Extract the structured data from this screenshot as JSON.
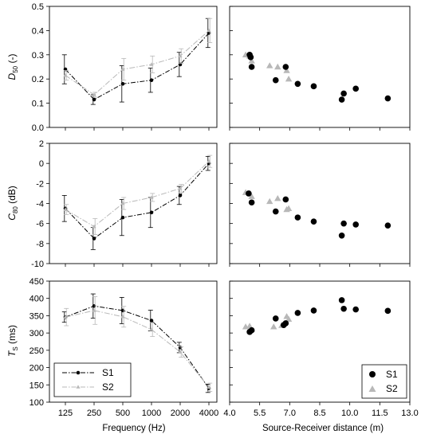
{
  "colors": {
    "S1": "#000000",
    "S2": "#b8b8b8",
    "axis": "#000000"
  },
  "chart_data": [
    {
      "type": "line",
      "panel": "D50-frequency",
      "ylabel_main": "D",
      "ylabel_sub": "50",
      "ylabel_unit": " (-)",
      "ylim": [
        0,
        0.5
      ],
      "yticks": [
        "0.0",
        "0.1",
        "0.2",
        "0.3",
        "0.4",
        "0.5"
      ],
      "categories": [
        "125",
        "250",
        "500",
        "1000",
        "2000",
        "4000"
      ],
      "series": [
        {
          "name": "S1",
          "values": [
            0.24,
            0.115,
            0.18,
            0.195,
            0.26,
            0.39
          ],
          "errors": [
            0.06,
            0.02,
            0.075,
            0.05,
            0.05,
            0.06
          ]
        },
        {
          "name": "S2",
          "values": [
            0.215,
            0.135,
            0.24,
            0.26,
            0.295,
            0.4
          ],
          "errors": [
            0.02,
            0.01,
            0.045,
            0.035,
            0.03,
            0.05
          ]
        }
      ]
    },
    {
      "type": "scatter",
      "panel": "D50-distance",
      "ylim": [
        0,
        0.5
      ],
      "xlim": [
        4.0,
        13.0
      ],
      "series": [
        {
          "name": "S1",
          "x": [
            5.0,
            5.05,
            5.1,
            6.3,
            6.8,
            7.4,
            8.2,
            9.6,
            9.7,
            10.3,
            11.9
          ],
          "y": [
            0.3,
            0.29,
            0.25,
            0.195,
            0.25,
            0.18,
            0.17,
            0.115,
            0.14,
            0.16,
            0.12
          ]
        },
        {
          "name": "S2",
          "x": [
            4.8,
            5.0,
            5.1,
            6.0,
            6.4,
            6.85,
            6.95
          ],
          "y": [
            0.3,
            0.295,
            0.275,
            0.255,
            0.25,
            0.235,
            0.2
          ]
        }
      ]
    },
    {
      "type": "line",
      "panel": "C80-frequency",
      "ylabel_main": "C",
      "ylabel_sub": "80",
      "ylabel_unit": " (dB)",
      "ylim": [
        -10,
        2
      ],
      "yticks": [
        "-10",
        "-8",
        "-6",
        "-4",
        "-2",
        "0",
        "2"
      ],
      "categories": [
        "125",
        "250",
        "500",
        "1000",
        "2000",
        "4000"
      ],
      "series": [
        {
          "name": "S1",
          "values": [
            -4.5,
            -7.5,
            -5.4,
            -4.9,
            -3.2,
            0.0
          ],
          "errors": [
            1.3,
            1.1,
            1.8,
            1.5,
            0.9,
            0.7
          ]
        },
        {
          "name": "S2",
          "values": [
            -4.6,
            -6.3,
            -4.0,
            -3.4,
            -2.5,
            0.2
          ],
          "errors": [
            0.5,
            0.8,
            0.6,
            0.4,
            0.4,
            0.6
          ]
        }
      ]
    },
    {
      "type": "scatter",
      "panel": "C80-distance",
      "ylim": [
        -10,
        2
      ],
      "xlim": [
        4.0,
        13.0
      ],
      "series": [
        {
          "name": "S1",
          "x": [
            4.95,
            5.1,
            6.3,
            6.8,
            7.4,
            8.2,
            9.6,
            9.7,
            10.3,
            11.9
          ],
          "y": [
            -3.0,
            -3.9,
            -4.8,
            -3.6,
            -5.4,
            -5.8,
            -7.2,
            -6.0,
            -6.1,
            -6.2
          ]
        },
        {
          "name": "S2",
          "x": [
            4.8,
            5.0,
            5.1,
            6.0,
            6.4,
            6.85,
            6.95
          ],
          "y": [
            -2.9,
            -3.0,
            -3.3,
            -3.8,
            -3.5,
            -4.6,
            -4.5
          ]
        }
      ]
    },
    {
      "type": "line",
      "panel": "Ts-frequency",
      "ylabel_main": "T",
      "ylabel_sub": "S",
      "ylabel_unit": " (ms)",
      "xlabel": "Frequency (Hz)",
      "ylim": [
        100,
        450
      ],
      "yticks": [
        "100",
        "150",
        "200",
        "250",
        "300",
        "350",
        "400",
        "450"
      ],
      "categories": [
        "125",
        "250",
        "500",
        "1000",
        "2000",
        "4000"
      ],
      "series": [
        {
          "name": "S1",
          "values": [
            346,
            378,
            365,
            336,
            258,
            140
          ],
          "errors": [
            15,
            35,
            38,
            30,
            15,
            12
          ]
        },
        {
          "name": "S2",
          "values": [
            346,
            365,
            347,
            310,
            245,
            143
          ],
          "errors": [
            25,
            40,
            30,
            20,
            15,
            12
          ]
        }
      ]
    },
    {
      "type": "scatter",
      "panel": "Ts-distance",
      "xlabel": "Source-Receiver distance (m)",
      "ylim": [
        100,
        450
      ],
      "xlim": [
        4.0,
        13.0
      ],
      "xticks": [
        "4.0",
        "5.5",
        "7.0",
        "8.5",
        "10.0",
        "11.5",
        "13.0"
      ],
      "series": [
        {
          "name": "S1",
          "x": [
            5.0,
            5.1,
            6.3,
            6.7,
            6.8,
            7.4,
            8.2,
            9.6,
            9.7,
            10.3,
            11.9
          ],
          "y": [
            303,
            308,
            342,
            323,
            328,
            358,
            365,
            395,
            370,
            368,
            364
          ]
        },
        {
          "name": "S2",
          "x": [
            4.8,
            5.0,
            5.1,
            6.2,
            6.6,
            6.85,
            6.95
          ],
          "y": [
            318,
            320,
            310,
            318,
            322,
            348,
            340
          ]
        }
      ]
    }
  ],
  "legend": {
    "s1": "S1",
    "s2": "S2"
  }
}
